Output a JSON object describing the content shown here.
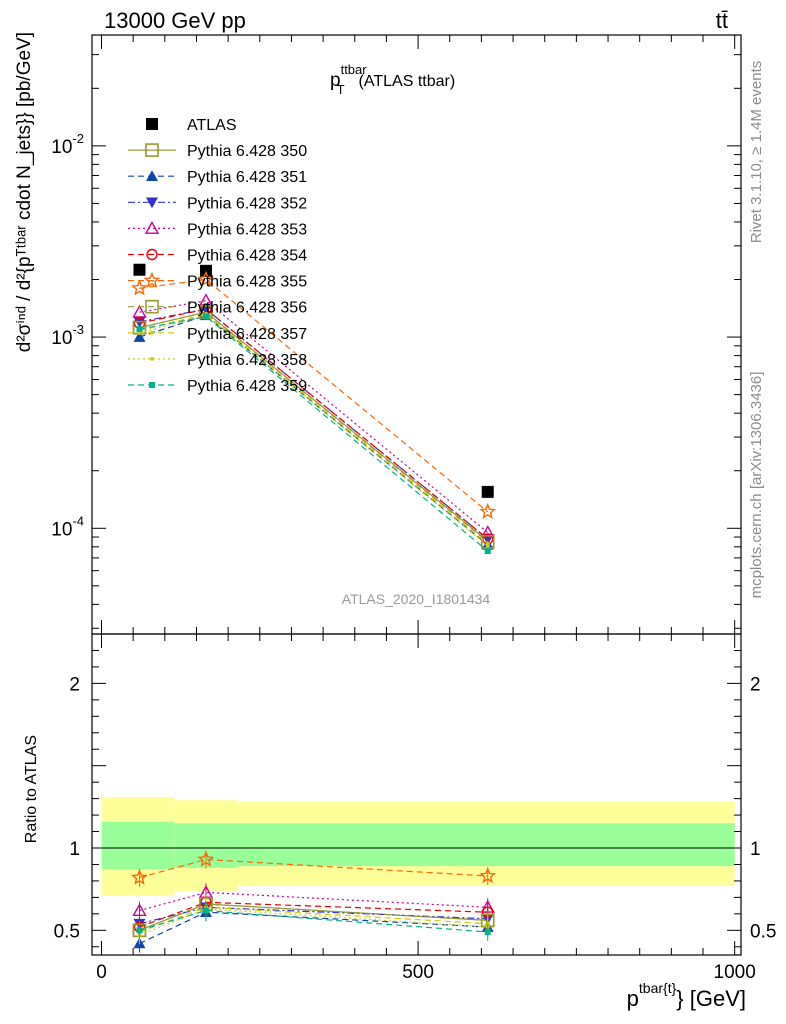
{
  "header": {
    "left": "13000 GeV pp",
    "right": "tt̄"
  },
  "side_labels": {
    "rivet": "Rivet 3.1.10, ≥ 1.4M events",
    "mcplots": "mcplots.cern.ch [arXiv:1306.3436]"
  },
  "plot_title": {
    "main": "p",
    "sup": "ttbar",
    "sub": "T",
    "rest": "(ATLAS ttbar)"
  },
  "watermark": "ATLAS_2020_I1801434",
  "ylabel_main": "d²σⁱⁿᵈ / d²{pᵀᵗᵇᵃʳ cdot N_jets}} [pb/GeV]",
  "ylabel_ratio": "Ratio to ATLAS",
  "xlabel": {
    "main": "p",
    "sup": "tbar{t}",
    "sub": "T",
    "rest": "} [GeV]"
  },
  "colors": {
    "ATLAS": "#000000",
    "350": "#999933",
    "351": "#0d47a1",
    "352": "#3333cc",
    "353": "#cc0099",
    "354": "#e60000",
    "355": "#ff6600",
    "356": "#999933",
    "357": "#cccc00",
    "358": "#cccc33",
    "359": "#00b386",
    "band_inner": "#99ff99",
    "band_outer": "#ffff99"
  },
  "chart_data": {
    "type": "line",
    "title": "p_T^ttbar (ATLAS ttbar)",
    "xlabel": "p_T^{tbar{t}} [GeV]",
    "ylabel": "d²σ/d²{p_T^{tbar{t}} cdot N_jets}} [pb/GeV]",
    "x": [
      60,
      165,
      610
    ],
    "xlim": [
      -15,
      1010
    ],
    "ylim_main": [
      2.8e-05,
      0.038
    ],
    "yscale_main": "log",
    "ylim_ratio": [
      0.35,
      2.3
    ],
    "main_yticks": [
      "10^-4",
      "10^-3",
      "10^-2"
    ],
    "ratio_yticks": [
      "0.5",
      "1",
      "2"
    ],
    "xticks": [
      "0",
      "500",
      "1000"
    ],
    "ratio_band": {
      "edges": [
        0,
        115,
        215,
        1000
      ],
      "inner": [
        [
          0.87,
          1.16
        ],
        [
          0.88,
          1.15
        ],
        [
          0.89,
          1.15
        ]
      ],
      "outer": [
        [
          0.71,
          1.31
        ],
        [
          0.74,
          1.29
        ],
        [
          0.77,
          1.28
        ]
      ]
    },
    "series": [
      {
        "name": "ATLAS",
        "key": "ATLAS",
        "marker": "square-filled",
        "line": "none",
        "values": [
          0.00225,
          0.00222,
          0.000155
        ]
      },
      {
        "name": "Pythia 6.428 350",
        "key": "350",
        "marker": "square-open",
        "line": "solid",
        "values": [
          0.00112,
          0.00135,
          8.6e-05
        ],
        "ratio": [
          0.5,
          0.66,
          0.56
        ]
      },
      {
        "name": "Pythia 6.428 351",
        "key": "351",
        "marker": "triangle-up-filled",
        "line": "dash",
        "values": [
          0.001,
          0.0013,
          8.2e-05
        ],
        "ratio": [
          0.42,
          0.61,
          0.52
        ]
      },
      {
        "name": "Pythia 6.428 352",
        "key": "352",
        "marker": "triangle-down-filled",
        "line": "dashdot",
        "values": [
          0.0012,
          0.0014,
          8.8e-05
        ],
        "ratio": [
          0.54,
          0.64,
          0.57
        ]
      },
      {
        "name": "Pythia 6.428 353",
        "key": "353",
        "marker": "triangle-up-open",
        "line": "dot",
        "values": [
          0.00135,
          0.00155,
          9.5e-05
        ],
        "ratio": [
          0.62,
          0.73,
          0.64
        ]
      },
      {
        "name": "Pythia 6.428 354",
        "key": "354",
        "marker": "circle-open",
        "line": "dash",
        "values": [
          0.00118,
          0.0014,
          8.8e-05
        ],
        "ratio": [
          0.52,
          0.67,
          0.61
        ]
      },
      {
        "name": "Pythia 6.428 355",
        "key": "355",
        "marker": "star-open",
        "line": "dash",
        "values": [
          0.0018,
          0.002,
          0.000122
        ],
        "ratio": [
          0.82,
          0.93,
          0.83
        ]
      },
      {
        "name": "Pythia 6.428 356",
        "key": "356",
        "marker": "square-open",
        "line": "dash",
        "values": [
          0.00112,
          0.00135,
          8.5e-05
        ],
        "ratio": [
          0.5,
          0.66,
          0.56
        ]
      },
      {
        "name": "Pythia 6.428 357",
        "key": "357",
        "marker": "none",
        "line": "dash",
        "values": [
          0.00108,
          0.00132,
          8.3e-05
        ],
        "ratio": [
          0.49,
          0.64,
          0.54
        ]
      },
      {
        "name": "Pythia 6.428 358",
        "key": "358",
        "marker": "dot-small",
        "line": "dot",
        "values": [
          0.00105,
          0.0013,
          8.1e-05
        ],
        "ratio": [
          0.47,
          0.63,
          0.52
        ]
      },
      {
        "name": "Pythia 6.428 359",
        "key": "359",
        "marker": "square-small-filled",
        "line": "dash",
        "values": [
          0.0011,
          0.00128,
          7.6e-05
        ],
        "ratio": [
          0.5,
          0.62,
          0.49
        ]
      }
    ]
  }
}
